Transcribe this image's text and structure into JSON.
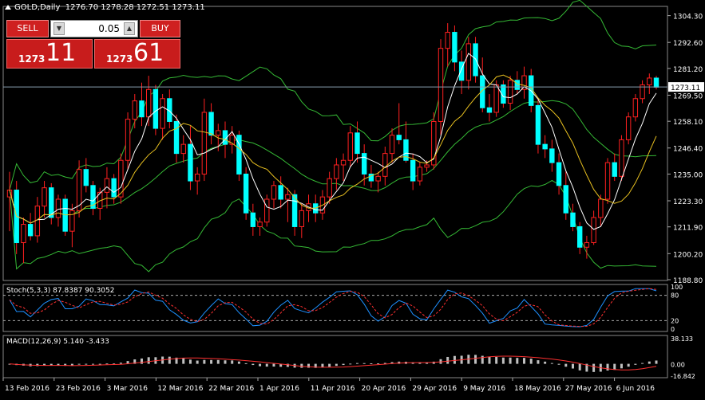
{
  "window": {
    "symbol_label": "GOLD,Daily",
    "ohlc": "1276.70 1278.28 1272.51 1273.11"
  },
  "trade_panel": {
    "sell_label": "SELL",
    "buy_label": "BUY",
    "lot_value": "0.05",
    "sell_price_small": "1273",
    "sell_price_big": "11",
    "buy_price_small": "1273",
    "buy_price_big": "61"
  },
  "price_axis": {
    "labels": [
      "1304.30",
      "1292.60",
      "1281.20",
      "1269.50",
      "1258.10",
      "1246.40",
      "1235.00",
      "1223.30",
      "1211.90",
      "1200.20",
      "1188.80"
    ],
    "current_price": "1273.11"
  },
  "stoch_panel": {
    "label": "Stoch(5,3,3) 87.8387 90.3052",
    "levels": [
      "100",
      "80",
      "20",
      "0"
    ]
  },
  "macd_panel": {
    "label": "MACD(12,26,9) 5.140 -3.433",
    "levels": [
      "38.133",
      "0.00",
      "-16.842"
    ]
  },
  "time_axis": {
    "labels": [
      "13 Feb 2016",
      "23 Feb 2016",
      "3 Mar 2016",
      "12 Mar 2016",
      "22 Mar 2016",
      "1 Apr 2016",
      "11 Apr 2016",
      "20 Apr 2016",
      "29 Apr 2016",
      "9 May 2016",
      "18 May 2016",
      "27 May 2016",
      "6 Jun 2016"
    ]
  },
  "colors": {
    "background": "#000000",
    "bull_candle": "#000000",
    "bear_candle": "#00ffff",
    "wick": "#ff2020",
    "bollinger": "#35b935",
    "ma_fast": "#ffffff",
    "ma_slow": "#e8c020",
    "stoch_main": "#1e90ff",
    "stoch_signal": "#ff3030",
    "macd_hist": "#c0c0c0",
    "macd_signal": "#ff3030"
  },
  "chart_data": {
    "type": "candlestick",
    "ylim": [
      1188.8,
      1308.0
    ],
    "candles": [
      [
        1225,
        1236,
        1210,
        1228
      ],
      [
        1228,
        1232,
        1200,
        1205
      ],
      [
        1205,
        1216,
        1196,
        1213
      ],
      [
        1213,
        1218,
        1206,
        1208
      ],
      [
        1208,
        1225,
        1205,
        1221
      ],
      [
        1221,
        1232,
        1216,
        1229
      ],
      [
        1229,
        1231,
        1213,
        1216
      ],
      [
        1216,
        1226,
        1212,
        1224
      ],
      [
        1224,
        1226,
        1208,
        1210
      ],
      [
        1210,
        1222,
        1203,
        1219
      ],
      [
        1219,
        1241,
        1216,
        1237
      ],
      [
        1237,
        1242,
        1227,
        1230
      ],
      [
        1230,
        1232,
        1217,
        1220
      ],
      [
        1220,
        1229,
        1215,
        1227
      ],
      [
        1227,
        1238,
        1220,
        1233
      ],
      [
        1233,
        1235,
        1222,
        1225
      ],
      [
        1225,
        1244,
        1222,
        1241
      ],
      [
        1241,
        1262,
        1237,
        1259
      ],
      [
        1259,
        1270,
        1255,
        1267
      ],
      [
        1267,
        1275,
        1256,
        1260
      ],
      [
        1260,
        1278,
        1256,
        1272
      ],
      [
        1272,
        1274,
        1252,
        1255
      ],
      [
        1255,
        1270,
        1250,
        1268
      ],
      [
        1268,
        1272,
        1255,
        1258
      ],
      [
        1258,
        1261,
        1240,
        1244
      ],
      [
        1244,
        1252,
        1240,
        1248
      ],
      [
        1248,
        1256,
        1228,
        1232
      ],
      [
        1232,
        1238,
        1226,
        1235
      ],
      [
        1235,
        1268,
        1232,
        1262
      ],
      [
        1262,
        1266,
        1248,
        1252
      ],
      [
        1252,
        1257,
        1245,
        1254
      ],
      [
        1254,
        1258,
        1242,
        1248
      ],
      [
        1248,
        1256,
        1244,
        1252
      ],
      [
        1252,
        1254,
        1232,
        1235
      ],
      [
        1235,
        1238,
        1215,
        1218
      ],
      [
        1218,
        1222,
        1208,
        1212
      ],
      [
        1212,
        1216,
        1208,
        1214
      ],
      [
        1214,
        1226,
        1212,
        1224
      ],
      [
        1224,
        1232,
        1220,
        1230
      ],
      [
        1230,
        1234,
        1220,
        1224
      ],
      [
        1224,
        1229,
        1214,
        1226
      ],
      [
        1226,
        1228,
        1208,
        1212
      ],
      [
        1212,
        1222,
        1207,
        1219
      ],
      [
        1219,
        1226,
        1214,
        1222
      ],
      [
        1222,
        1226,
        1214,
        1218
      ],
      [
        1218,
        1228,
        1215,
        1225
      ],
      [
        1225,
        1236,
        1222,
        1233
      ],
      [
        1233,
        1242,
        1228,
        1239
      ],
      [
        1239,
        1244,
        1232,
        1241
      ],
      [
        1241,
        1256,
        1238,
        1253
      ],
      [
        1253,
        1258,
        1240,
        1244
      ],
      [
        1244,
        1248,
        1230,
        1235
      ],
      [
        1235,
        1239,
        1229,
        1232
      ],
      [
        1232,
        1236,
        1227,
        1234
      ],
      [
        1234,
        1247,
        1230,
        1244
      ],
      [
        1244,
        1255,
        1240,
        1252
      ],
      [
        1252,
        1266,
        1248,
        1250
      ],
      [
        1250,
        1258,
        1240,
        1241
      ],
      [
        1241,
        1244,
        1228,
        1232
      ],
      [
        1232,
        1240,
        1230,
        1238
      ],
      [
        1238,
        1241,
        1236,
        1239
      ],
      [
        1239,
        1262,
        1237,
        1258
      ],
      [
        1258,
        1294,
        1252,
        1290
      ],
      [
        1290,
        1301,
        1282,
        1297
      ],
      [
        1297,
        1300,
        1280,
        1284
      ],
      [
        1284,
        1289,
        1270,
        1276
      ],
      [
        1276,
        1295,
        1272,
        1292
      ],
      [
        1292,
        1295,
        1275,
        1278
      ],
      [
        1278,
        1286,
        1262,
        1264
      ],
      [
        1264,
        1270,
        1258,
        1262
      ],
      [
        1262,
        1276,
        1260,
        1274
      ],
      [
        1274,
        1276,
        1264,
        1266
      ],
      [
        1266,
        1278,
        1263,
        1276
      ],
      [
        1276,
        1280,
        1270,
        1272
      ],
      [
        1272,
        1282,
        1268,
        1278
      ],
      [
        1278,
        1281,
        1262,
        1265
      ],
      [
        1265,
        1268,
        1244,
        1248
      ],
      [
        1248,
        1252,
        1242,
        1246
      ],
      [
        1246,
        1250,
        1236,
        1240
      ],
      [
        1240,
        1244,
        1226,
        1230
      ],
      [
        1230,
        1236,
        1215,
        1218
      ],
      [
        1218,
        1222,
        1210,
        1212
      ],
      [
        1212,
        1214,
        1200,
        1203
      ],
      [
        1203,
        1208,
        1198,
        1205
      ],
      [
        1205,
        1219,
        1204,
        1216
      ],
      [
        1216,
        1226,
        1212,
        1224
      ],
      [
        1224,
        1242,
        1222,
        1240
      ],
      [
        1240,
        1244,
        1232,
        1234
      ],
      [
        1234,
        1252,
        1232,
        1250
      ],
      [
        1250,
        1262,
        1248,
        1260
      ],
      [
        1260,
        1270,
        1258,
        1268
      ],
      [
        1268,
        1276,
        1266,
        1274
      ],
      [
        1274,
        1279,
        1270,
        1277
      ],
      [
        1277,
        1278,
        1272,
        1273
      ]
    ]
  }
}
